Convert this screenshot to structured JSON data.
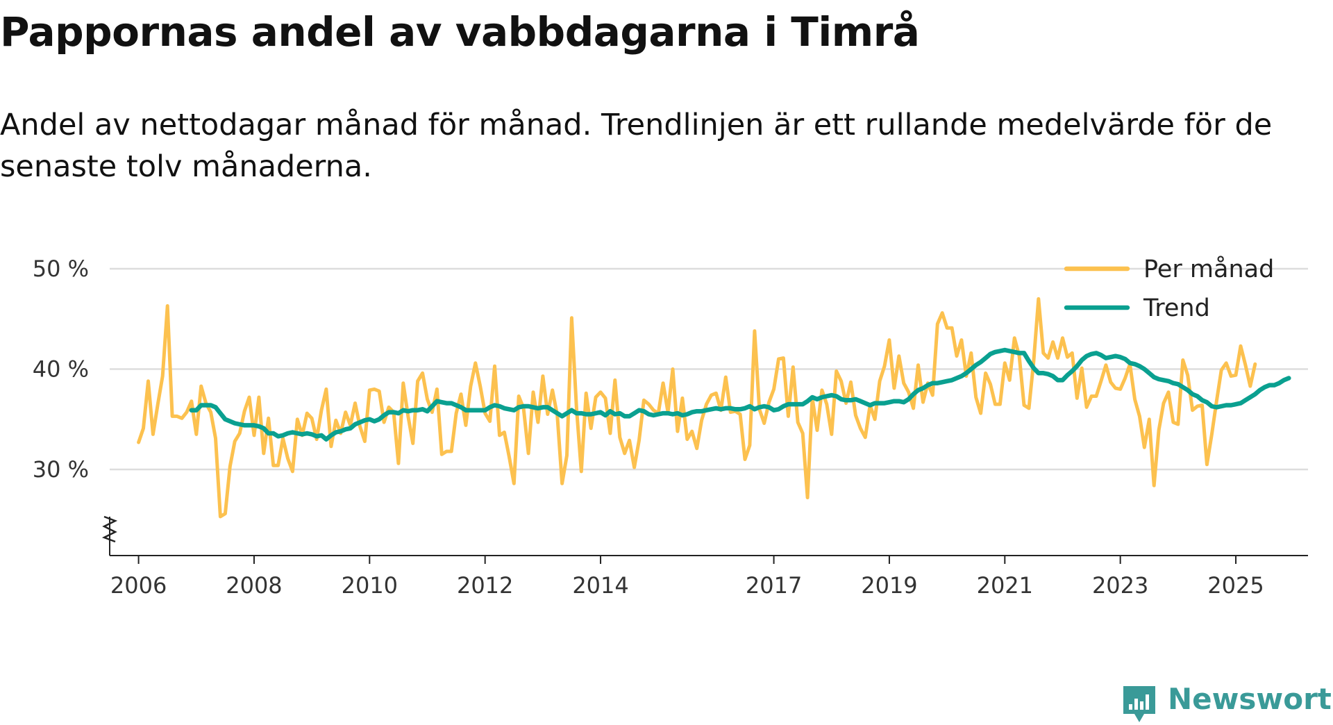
{
  "title": "Pappornas andel av vabbdagarna i Timrå",
  "subtitle": "Andel av nettodagar månad för månad. Trendlinjen är ett rullande medelvärde för de senaste tolv månaderna.",
  "brand": {
    "name": "Newsworthy",
    "icon": "newsworthy-logo-icon",
    "color": "#3a9a98"
  },
  "chart_data": {
    "type": "line",
    "ylim": [
      22,
      50
    ],
    "yticks": [
      30,
      40,
      50
    ],
    "ytick_suffix": " %",
    "axis_break": true,
    "xlim": [
      2005.5,
      2026.25
    ],
    "xticks": [
      2006,
      2008,
      2010,
      2012,
      2014,
      2017,
      2019,
      2021,
      2023,
      2025
    ],
    "xtick_labels": [
      "2006",
      "2008",
      "2010",
      "2012",
      "2014",
      "2017",
      "2019",
      "2021",
      "2023",
      "2025"
    ],
    "grid": true,
    "legend_position": "top-right",
    "series": [
      {
        "name": "Per månad",
        "color": "#fcc14f",
        "start": 2006.0,
        "step": 0.0833333,
        "values": [
          32.7,
          34.1,
          38.8,
          33.5,
          36.5,
          39.3,
          46.3,
          35.3,
          35.3,
          35.1,
          35.7,
          36.8,
          33.5,
          38.3,
          36.6,
          35.7,
          33.1,
          25.3,
          25.6,
          30.3,
          32.8,
          33.6,
          35.8,
          37.2,
          33.4,
          37.2,
          31.6,
          35.1,
          30.4,
          30.4,
          33.1,
          31.1,
          29.8,
          35.0,
          33.4,
          35.6,
          35.1,
          33.0,
          35.9,
          38.0,
          32.3,
          34.9,
          33.6,
          35.7,
          34.4,
          36.6,
          34.3,
          32.8,
          37.9,
          38.0,
          37.8,
          34.7,
          36.2,
          35.7,
          30.6,
          38.6,
          35.3,
          32.6,
          38.8,
          39.6,
          37.0,
          35.7,
          38.0,
          31.5,
          31.8,
          31.8,
          35.6,
          37.5,
          34.4,
          38.3,
          40.6,
          38.3,
          35.6,
          34.8,
          40.3,
          33.4,
          33.7,
          31.3,
          28.6,
          37.3,
          36.1,
          31.6,
          37.7,
          34.7,
          39.3,
          35.5,
          37.9,
          35.4,
          28.6,
          31.4,
          45.1,
          36.1,
          29.8,
          37.6,
          34.1,
          37.2,
          37.7,
          37.1,
          33.6,
          38.9,
          33.2,
          31.6,
          32.9,
          30.2,
          32.9,
          36.9,
          36.5,
          35.9,
          35.6,
          38.6,
          35.7,
          40.0,
          33.8,
          37.1,
          33.0,
          33.8,
          32.1,
          34.9,
          36.5,
          37.4,
          37.6,
          35.9,
          39.2,
          35.7,
          35.8,
          35.5,
          31.0,
          32.4,
          43.8,
          36.0,
          34.6,
          36.7,
          38.0,
          41.0,
          41.1,
          35.3,
          40.2,
          34.7,
          33.6,
          27.2,
          37.1,
          33.9,
          37.9,
          36.5,
          33.5,
          39.8,
          38.8,
          36.6,
          38.7,
          35.4,
          34.1,
          33.2,
          36.4,
          35.0,
          38.8,
          40.3,
          42.9,
          38.1,
          41.3,
          38.6,
          37.7,
          36.1,
          40.4,
          36.7,
          38.6,
          37.4,
          44.5,
          45.6,
          44.1,
          44.1,
          41.3,
          42.9,
          39.3,
          41.6,
          37.2,
          35.6,
          39.6,
          38.5,
          36.5,
          36.5,
          40.6,
          38.9,
          43.1,
          41.3,
          36.4,
          36.1,
          40.8,
          47.0,
          41.6,
          41.1,
          42.7,
          41.1,
          43.1,
          41.2,
          41.6,
          37.1,
          40.1,
          36.2,
          37.3,
          37.3,
          38.8,
          40.4,
          38.7,
          38.1,
          38.0,
          39.1,
          40.5,
          37.0,
          35.3,
          32.2,
          35.0,
          28.4,
          33.9,
          36.6,
          37.7,
          34.7,
          34.5,
          40.9,
          39.4,
          35.9,
          36.3,
          36.4,
          30.5,
          33.5,
          36.8,
          39.9,
          40.6,
          39.3,
          39.4,
          42.3,
          40.4,
          38.3,
          40.5
        ]
      },
      {
        "name": "Trend",
        "color": "#0aa090",
        "start": 2006.9167,
        "step": 0.0833333,
        "values": [
          35.9,
          35.9,
          36.4,
          36.4,
          36.4,
          36.2,
          35.6,
          35.0,
          34.8,
          34.6,
          34.5,
          34.4,
          34.4,
          34.4,
          34.3,
          34.1,
          33.6,
          33.6,
          33.3,
          33.4,
          33.6,
          33.7,
          33.6,
          33.5,
          33.6,
          33.5,
          33.3,
          33.4,
          33.0,
          33.4,
          33.7,
          33.8,
          34.0,
          34.1,
          34.5,
          34.7,
          34.9,
          35.0,
          34.8,
          35.0,
          35.4,
          35.7,
          35.7,
          35.6,
          35.9,
          35.8,
          35.9,
          35.9,
          36.0,
          35.8,
          36.3,
          36.8,
          36.7,
          36.6,
          36.6,
          36.4,
          36.2,
          35.9,
          35.9,
          35.9,
          35.9,
          35.9,
          36.2,
          36.4,
          36.3,
          36.1,
          36.0,
          35.9,
          36.2,
          36.3,
          36.3,
          36.2,
          36.1,
          36.2,
          36.2,
          35.9,
          35.6,
          35.3,
          35.6,
          35.9,
          35.6,
          35.6,
          35.5,
          35.5,
          35.6,
          35.7,
          35.4,
          35.8,
          35.5,
          35.6,
          35.3,
          35.3,
          35.6,
          35.9,
          35.8,
          35.5,
          35.4,
          35.5,
          35.6,
          35.6,
          35.5,
          35.6,
          35.4,
          35.5,
          35.7,
          35.8,
          35.8,
          35.9,
          36.0,
          36.1,
          36.0,
          36.1,
          36.1,
          36.0,
          36.0,
          36.1,
          36.3,
          36.0,
          36.2,
          36.3,
          36.2,
          35.9,
          36.0,
          36.3,
          36.5,
          36.5,
          36.5,
          36.5,
          36.8,
          37.2,
          37.0,
          37.2,
          37.3,
          37.4,
          37.3,
          37.0,
          36.9,
          36.9,
          37.0,
          36.8,
          36.6,
          36.4,
          36.6,
          36.6,
          36.6,
          36.7,
          36.8,
          36.8,
          36.7,
          37.0,
          37.5,
          37.9,
          38.1,
          38.4,
          38.6,
          38.6,
          38.7,
          38.8,
          38.9,
          39.1,
          39.3,
          39.6,
          40.0,
          40.4,
          40.7,
          41.1,
          41.5,
          41.7,
          41.8,
          41.9,
          41.8,
          41.7,
          41.6,
          41.6,
          40.8,
          40.1,
          39.6,
          39.6,
          39.5,
          39.3,
          38.9,
          38.9,
          39.4,
          39.8,
          40.3,
          40.9,
          41.3,
          41.5,
          41.6,
          41.4,
          41.1,
          41.2,
          41.3,
          41.2,
          41.0,
          40.6,
          40.5,
          40.3,
          40.0,
          39.6,
          39.2,
          39.0,
          38.9,
          38.8,
          38.6,
          38.5,
          38.2,
          37.9,
          37.5,
          37.3,
          36.9,
          36.7,
          36.3,
          36.2,
          36.3,
          36.4,
          36.4,
          36.5,
          36.6,
          36.9,
          37.2,
          37.5,
          37.9,
          38.2,
          38.4,
          38.4,
          38.6,
          38.9,
          39.1
        ]
      }
    ]
  }
}
